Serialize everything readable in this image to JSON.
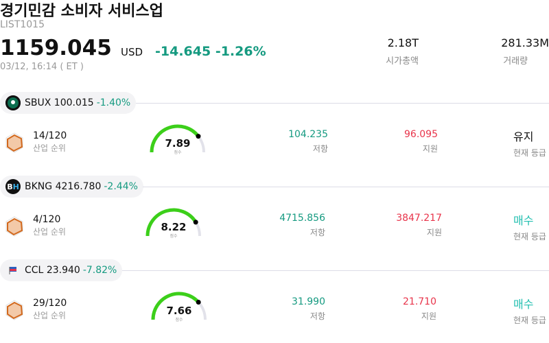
{
  "header": {
    "title": "경기민감 소비자 서비스업",
    "code": "LIST1015",
    "price": "1159.045",
    "currency": "USD",
    "change": "-14.645 -1.26%",
    "time": "03/12, 16:14  ( ET )",
    "stats": [
      {
        "value": "2.18T",
        "label": "시가총액"
      },
      {
        "value": "281.33M",
        "label": "거래량"
      }
    ]
  },
  "colors": {
    "up_green": "#159a80",
    "red": "#e8334a",
    "buy": "#22bfb0",
    "gauge_green": "#3ccf1a",
    "gauge_track": "#e2e2ea"
  },
  "stocks": [
    {
      "ticker": "SBUX",
      "price": "100.015",
      "change": "-1.40%",
      "logo_icon": "starbucks-logo",
      "logo_color": "#0b6e4f",
      "rank": "14/120",
      "rank_label": "산업 순위",
      "score": 7.89,
      "score_text": "7.89",
      "score_label": "점수",
      "resistance": "104.235",
      "resistance_label": "저항",
      "support": "96.095",
      "support_label": "지원",
      "grade": "유지",
      "grade_label": "현재 등급",
      "grade_type": "hold"
    },
    {
      "ticker": "BKNG",
      "price": "4216.780",
      "change": "-2.44%",
      "logo_icon": "booking-logo",
      "logo_text": "BH",
      "logo_color": "#1a1a2e",
      "rank": "4/120",
      "rank_label": "산업 순위",
      "score": 8.22,
      "score_text": "8.22",
      "score_label": "점수",
      "resistance": "4715.856",
      "resistance_label": "저항",
      "support": "3847.217",
      "support_label": "지원",
      "grade": "매수",
      "grade_label": "현재 등급",
      "grade_type": "buy"
    },
    {
      "ticker": "CCL",
      "price": "23.940",
      "change": "-7.82%",
      "logo_icon": "carnival-flag-logo",
      "logo_color": "#e8e8f0",
      "rank": "29/120",
      "rank_label": "산업 순위",
      "score": 7.66,
      "score_text": "7.66",
      "score_label": "점수",
      "resistance": "31.990",
      "resistance_label": "저항",
      "support": "21.710",
      "support_label": "지원",
      "grade": "매수",
      "grade_label": "현재 등급",
      "grade_type": "buy"
    }
  ]
}
